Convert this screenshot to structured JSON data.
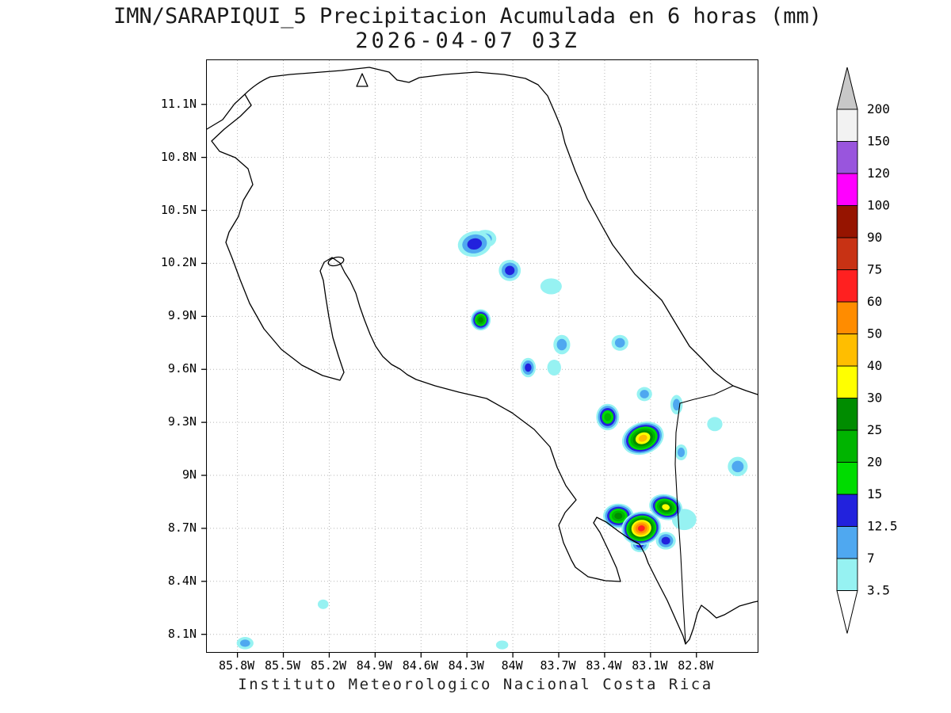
{
  "title": {
    "line1": "IMN/SARAPIQUI_5 Precipitacion Acumulada en 6 horas (mm)",
    "line2": "2026-04-07 03Z"
  },
  "footer": "Instituto Meteorologico Nacional Costa Rica",
  "axes": {
    "y_ticks": [
      "11.1N",
      "10.8N",
      "10.5N",
      "10.2N",
      "9.9N",
      "9.6N",
      "9.3N",
      "9N",
      "8.7N",
      "8.4N",
      "8.1N"
    ],
    "x_ticks": [
      "85.8W",
      "85.5W",
      "85.2W",
      "84.9W",
      "84.6W",
      "84.3W",
      "84W",
      "83.7W",
      "83.4W",
      "83.1W",
      "82.8W"
    ]
  },
  "colorbar": {
    "segment_colors": [
      "#96F2F2",
      "#4FA8F0",
      "#2222DD",
      "#00DC00",
      "#00B400",
      "#008C00",
      "#FFFF00",
      "#FFBE00",
      "#FF8C00",
      "#FF2020",
      "#C83214",
      "#961400",
      "#FF00FF",
      "#9955DD",
      "#F2F2F2"
    ],
    "below_min_color": "#FFFFFF",
    "above_max_color": "#C8C8C8"
  },
  "chart_data": {
    "type": "heatmap",
    "title": "IMN/SARAPIQUI_5 Precipitacion Acumulada en 6 horas (mm)",
    "valid_time": "2026-04-07 03Z",
    "units": "mm",
    "region": "Costa Rica",
    "source_label": "Instituto Meteorologico Nacional Costa Rica",
    "lon_range_deg_w": [
      86.0,
      82.4
    ],
    "lat_range_deg_n": [
      8.0,
      11.35
    ],
    "levels_mm": [
      3.5,
      7,
      12.5,
      15,
      20,
      25,
      30,
      40,
      50,
      60,
      75,
      90,
      100,
      120,
      150,
      200
    ],
    "cells": [
      {
        "lon_w": 84.25,
        "lat_n": 10.31,
        "peak_mm": 12.5,
        "rx_deg": 0.11,
        "ry_deg": 0.072,
        "rot": -10
      },
      {
        "lon_w": 84.18,
        "lat_n": 10.34,
        "peak_mm": 7,
        "rx_deg": 0.072,
        "ry_deg": 0.05,
        "rot": 0
      },
      {
        "lon_w": 84.02,
        "lat_n": 10.16,
        "peak_mm": 12.5,
        "rx_deg": 0.072,
        "ry_deg": 0.06,
        "rot": 0
      },
      {
        "lon_w": 84.21,
        "lat_n": 9.88,
        "peak_mm": 25,
        "rx_deg": 0.065,
        "ry_deg": 0.06,
        "rot": 0
      },
      {
        "lon_w": 83.75,
        "lat_n": 10.07,
        "peak_mm": 3.5,
        "rx_deg": 0.07,
        "ry_deg": 0.045,
        "rot": 0
      },
      {
        "lon_w": 83.68,
        "lat_n": 9.74,
        "peak_mm": 7,
        "rx_deg": 0.055,
        "ry_deg": 0.055,
        "rot": 0
      },
      {
        "lon_w": 83.9,
        "lat_n": 9.61,
        "peak_mm": 12.5,
        "rx_deg": 0.05,
        "ry_deg": 0.055,
        "rot": 0
      },
      {
        "lon_w": 83.73,
        "lat_n": 9.61,
        "peak_mm": 3.5,
        "rx_deg": 0.045,
        "ry_deg": 0.045,
        "rot": 0
      },
      {
        "lon_w": 83.3,
        "lat_n": 9.75,
        "peak_mm": 7,
        "rx_deg": 0.055,
        "ry_deg": 0.045,
        "rot": 0
      },
      {
        "lon_w": 83.14,
        "lat_n": 9.46,
        "peak_mm": 7,
        "rx_deg": 0.05,
        "ry_deg": 0.04,
        "rot": 0
      },
      {
        "lon_w": 83.38,
        "lat_n": 9.33,
        "peak_mm": 20,
        "rx_deg": 0.075,
        "ry_deg": 0.075,
        "rot": 0
      },
      {
        "lon_w": 83.15,
        "lat_n": 9.21,
        "peak_mm": 40,
        "rx_deg": 0.14,
        "ry_deg": 0.09,
        "rot": -20
      },
      {
        "lon_w": 82.93,
        "lat_n": 9.4,
        "peak_mm": 7,
        "rx_deg": 0.04,
        "ry_deg": 0.055,
        "rot": 0
      },
      {
        "lon_w": 82.9,
        "lat_n": 9.13,
        "peak_mm": 7,
        "rx_deg": 0.04,
        "ry_deg": 0.045,
        "rot": 0
      },
      {
        "lon_w": 82.68,
        "lat_n": 9.29,
        "peak_mm": 3.5,
        "rx_deg": 0.05,
        "ry_deg": 0.04,
        "rot": 0
      },
      {
        "lon_w": 82.53,
        "lat_n": 9.05,
        "peak_mm": 7,
        "rx_deg": 0.065,
        "ry_deg": 0.055,
        "rot": 0
      },
      {
        "lon_w": 83.31,
        "lat_n": 8.77,
        "peak_mm": 25,
        "rx_deg": 0.1,
        "ry_deg": 0.07,
        "rot": 0
      },
      {
        "lon_w": 83.16,
        "lat_n": 8.7,
        "peak_mm": 60,
        "rx_deg": 0.13,
        "ry_deg": 0.095,
        "rot": -10
      },
      {
        "lon_w": 83.17,
        "lat_n": 8.61,
        "peak_mm": 12.5,
        "rx_deg": 0.06,
        "ry_deg": 0.045,
        "rot": 0
      },
      {
        "lon_w": 83.0,
        "lat_n": 8.82,
        "peak_mm": 30,
        "rx_deg": 0.11,
        "ry_deg": 0.072,
        "rot": 15
      },
      {
        "lon_w": 83.0,
        "lat_n": 8.63,
        "peak_mm": 12.5,
        "rx_deg": 0.065,
        "ry_deg": 0.05,
        "rot": 0
      },
      {
        "lon_w": 82.88,
        "lat_n": 8.75,
        "peak_mm": 3.5,
        "rx_deg": 0.08,
        "ry_deg": 0.06,
        "rot": 0
      },
      {
        "lon_w": 85.75,
        "lat_n": 8.05,
        "peak_mm": 7,
        "rx_deg": 0.055,
        "ry_deg": 0.035,
        "rot": 0
      },
      {
        "lon_w": 85.24,
        "lat_n": 8.27,
        "peak_mm": 3.5,
        "rx_deg": 0.035,
        "ry_deg": 0.027,
        "rot": 0
      },
      {
        "lon_w": 84.07,
        "lat_n": 8.04,
        "peak_mm": 3.5,
        "rx_deg": 0.04,
        "ry_deg": 0.025,
        "rot": 0
      }
    ]
  }
}
